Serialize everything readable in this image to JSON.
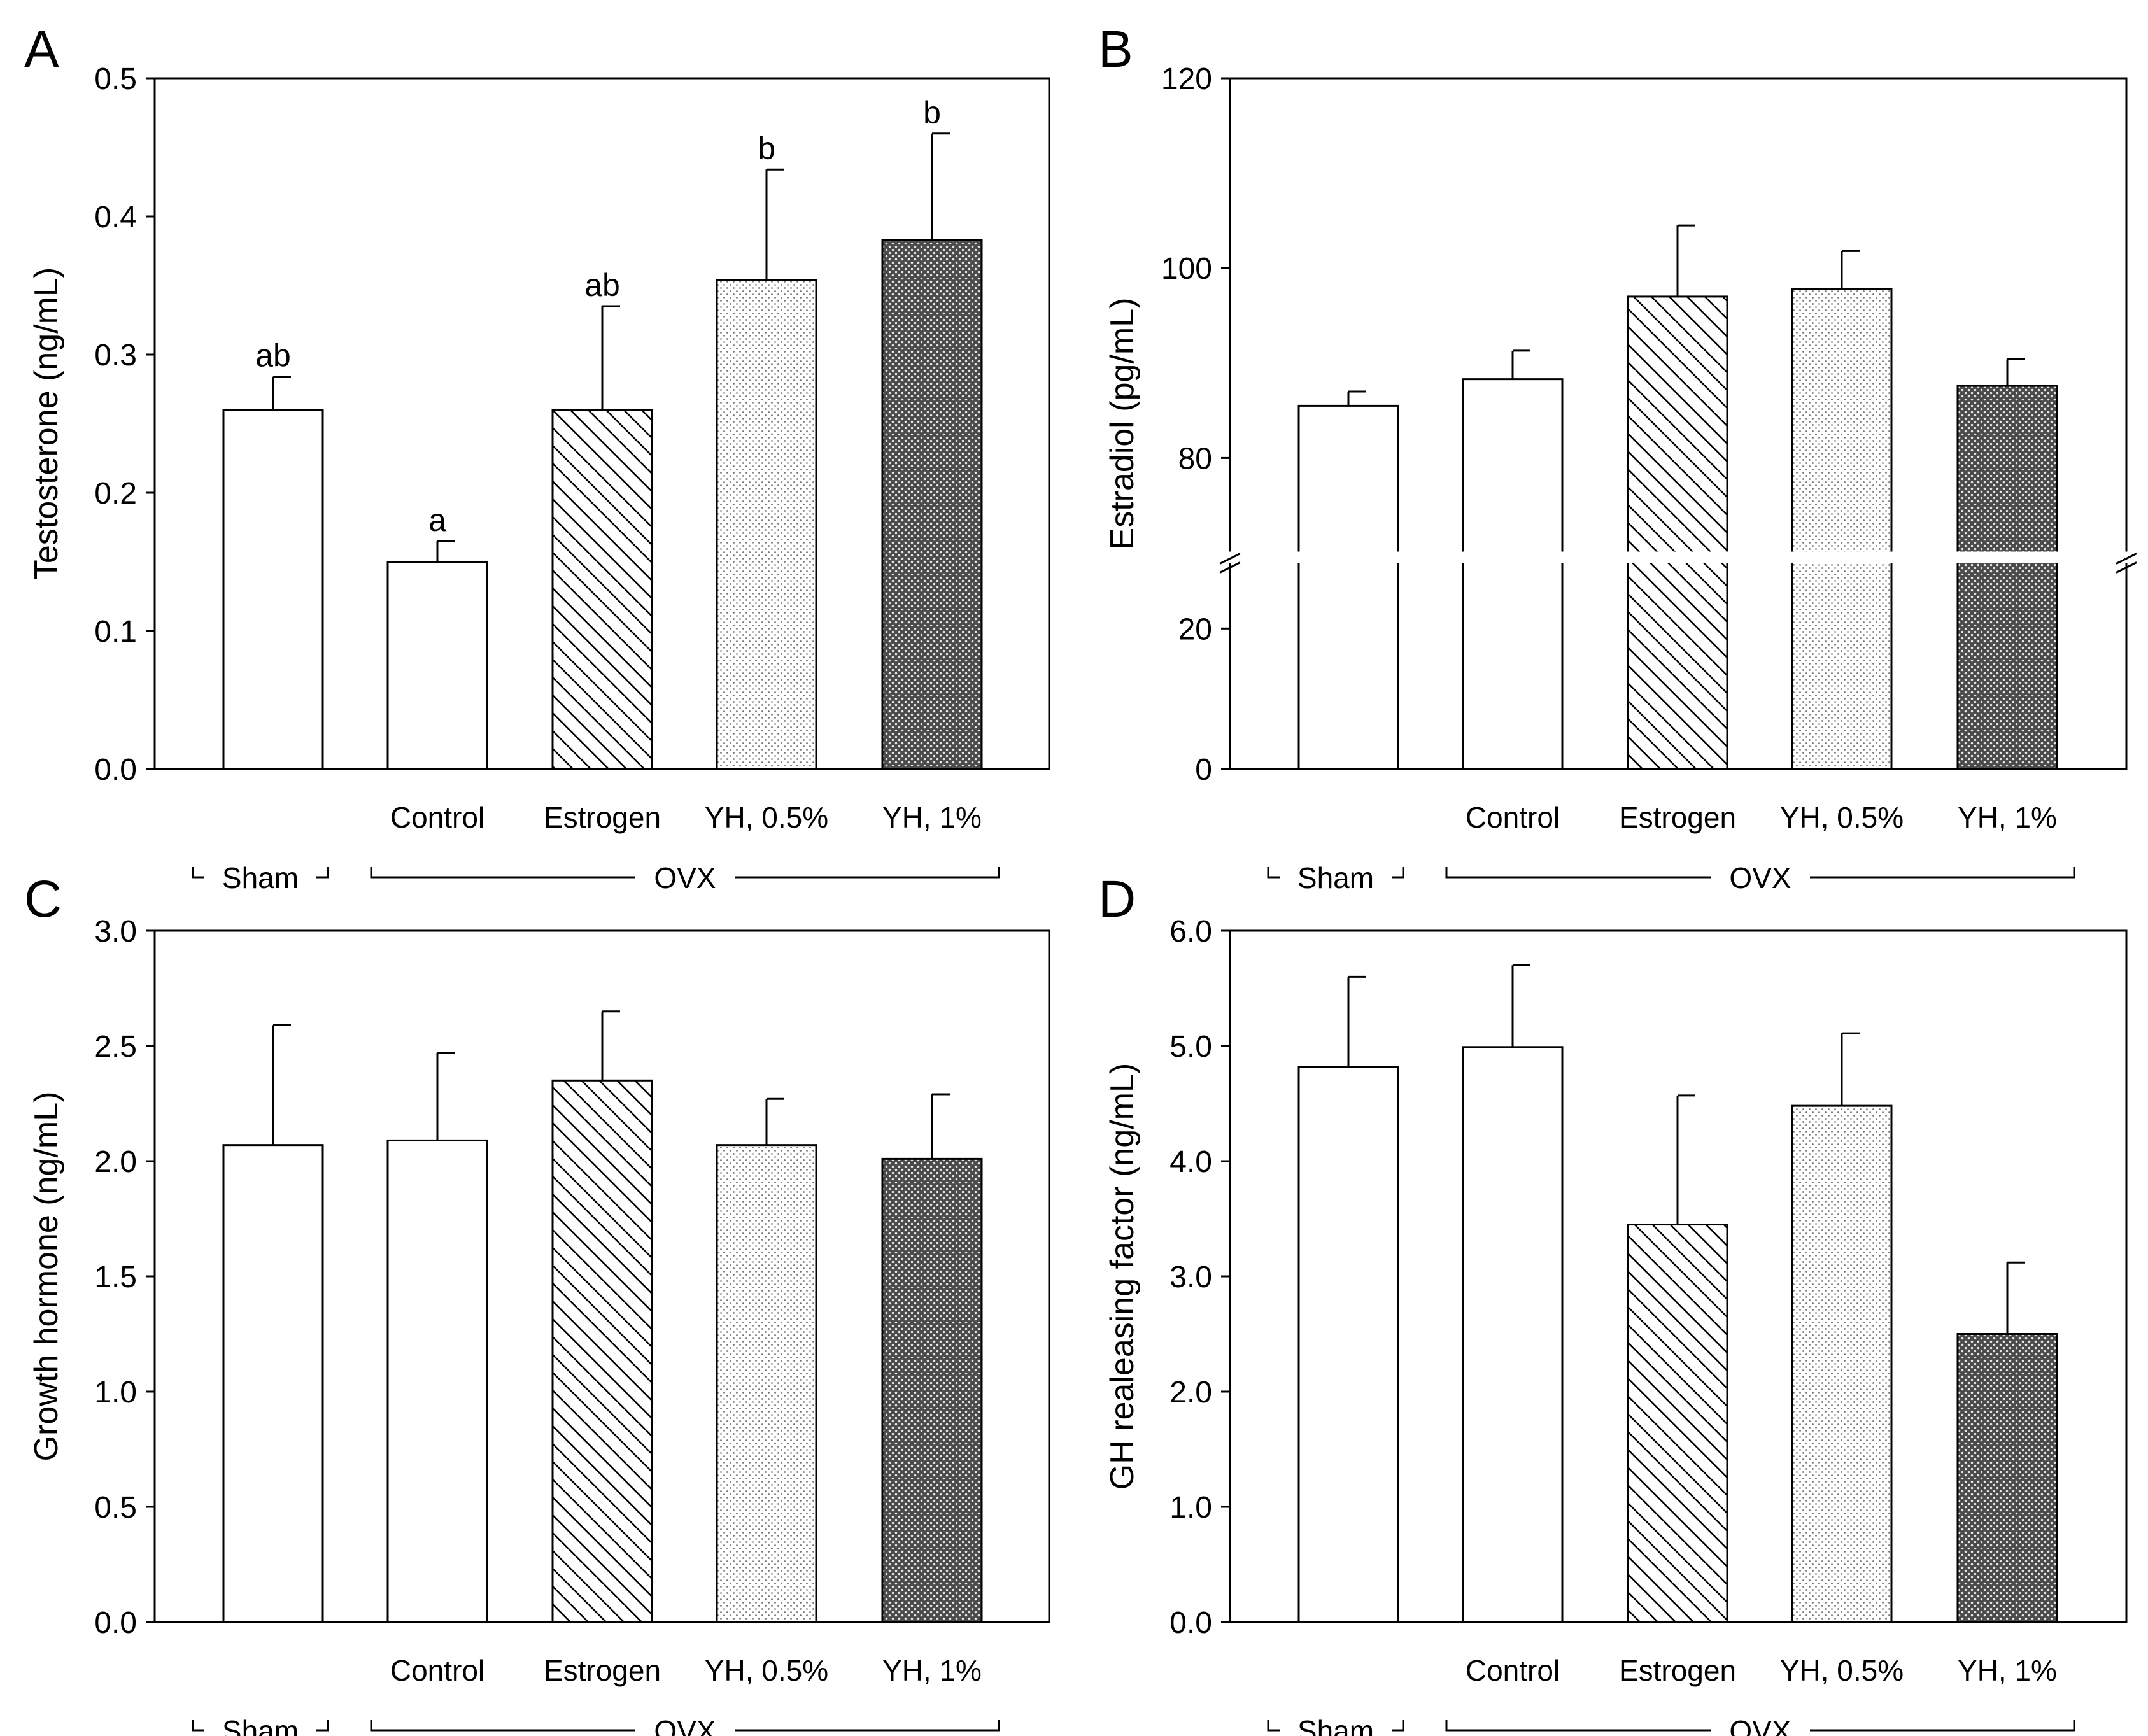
{
  "figure": {
    "groups": {
      "sham": "Sham",
      "ovx": "OVX"
    }
  },
  "chart_data": [
    {
      "panel": "A",
      "type": "bar",
      "ylabel": "Testosterone (ng/mL)",
      "ylim": [
        0,
        0.5
      ],
      "yticks": [
        0.0,
        0.1,
        0.2,
        0.3,
        0.4,
        0.5
      ],
      "ytick_labels": [
        "0.0",
        "0.1",
        "0.2",
        "0.3",
        "0.4",
        "0.5"
      ],
      "categories": [
        "",
        "Control",
        "Estrogen",
        "YH, 0.5%",
        "YH, 1%"
      ],
      "values": [
        0.26,
        0.15,
        0.26,
        0.354,
        0.383
      ],
      "errors": [
        0.024,
        0.015,
        0.075,
        0.08,
        0.077
      ],
      "letters": [
        "ab",
        "a",
        "ab",
        "b",
        "b"
      ],
      "fills": [
        "open",
        "open",
        "hatch",
        "dots-light",
        "dots-dark"
      ],
      "axis_break": null
    },
    {
      "panel": "B",
      "type": "bar",
      "ylabel": "Estradiol (pg/mL)",
      "ylim": [
        0,
        120
      ],
      "yticks": [
        0,
        20,
        80,
        100,
        120
      ],
      "ytick_labels": [
        "0",
        "20",
        "80",
        "100",
        "120"
      ],
      "categories": [
        "",
        "Control",
        "Estrogen",
        "YH, 0.5%",
        "YH, 1%"
      ],
      "values": [
        85.5,
        88.3,
        97,
        97.8,
        87.6
      ],
      "errors": [
        1.5,
        3,
        7.5,
        4,
        2.8
      ],
      "letters": [],
      "fills": [
        "open",
        "open",
        "hatch",
        "dots-light",
        "dots-dark"
      ],
      "axis_break": {
        "lower_max": 29.5,
        "upper_min": 70
      }
    },
    {
      "panel": "C",
      "type": "bar",
      "ylabel": "Growth hormone (ng/mL)",
      "ylim": [
        0,
        3.0
      ],
      "yticks": [
        0.0,
        0.5,
        1.0,
        1.5,
        2.0,
        2.5,
        3.0
      ],
      "ytick_labels": [
        "0.0",
        "0.5",
        "1.0",
        "1.5",
        "2.0",
        "2.5",
        "3.0"
      ],
      "categories": [
        "",
        "Control",
        "Estrogen",
        "YH, 0.5%",
        "YH, 1%"
      ],
      "values": [
        2.07,
        2.09,
        2.35,
        2.07,
        2.01
      ],
      "errors": [
        0.52,
        0.38,
        0.3,
        0.2,
        0.28
      ],
      "letters": [],
      "fills": [
        "open",
        "open",
        "hatch",
        "dots-light",
        "dots-dark"
      ],
      "axis_break": null
    },
    {
      "panel": "D",
      "type": "bar",
      "ylabel": "GH realeasing factor (ng/mL)",
      "ylim": [
        0,
        6.0
      ],
      "yticks": [
        0.0,
        1.0,
        2.0,
        3.0,
        4.0,
        5.0,
        6.0
      ],
      "ytick_labels": [
        "0.0",
        "1.0",
        "2.0",
        "3.0",
        "4.0",
        "5.0",
        "6.0"
      ],
      "categories": [
        "",
        "Control",
        "Estrogen",
        "YH, 0.5%",
        "YH, 1%"
      ],
      "values": [
        4.82,
        4.99,
        3.45,
        4.48,
        2.5
      ],
      "errors": [
        0.78,
        0.71,
        1.12,
        0.63,
        0.62
      ],
      "letters": [],
      "fills": [
        "open",
        "open",
        "hatch",
        "dots-light",
        "dots-dark"
      ],
      "axis_break": null
    }
  ]
}
